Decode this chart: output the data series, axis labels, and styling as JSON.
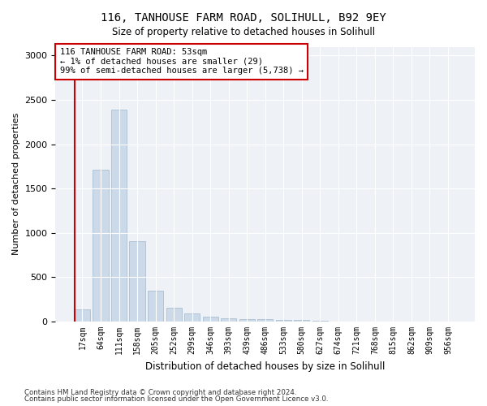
{
  "title": "116, TANHOUSE FARM ROAD, SOLIHULL, B92 9EY",
  "subtitle": "Size of property relative to detached houses in Solihull",
  "xlabel": "Distribution of detached houses by size in Solihull",
  "ylabel": "Number of detached properties",
  "bar_color": "#ccd9e8",
  "bar_edge_color": "#a0b8cc",
  "highlight_color": "#cc0000",
  "categories": [
    "17sqm",
    "64sqm",
    "111sqm",
    "158sqm",
    "205sqm",
    "252sqm",
    "299sqm",
    "346sqm",
    "393sqm",
    "439sqm",
    "486sqm",
    "533sqm",
    "580sqm",
    "627sqm",
    "674sqm",
    "721sqm",
    "768sqm",
    "815sqm",
    "862sqm",
    "909sqm",
    "956sqm"
  ],
  "values": [
    140,
    1710,
    2390,
    910,
    350,
    155,
    90,
    55,
    40,
    30,
    25,
    20,
    15,
    10,
    5,
    5,
    5,
    5,
    5,
    5,
    5
  ],
  "annotation_text": "116 TANHOUSE FARM ROAD: 53sqm\n← 1% of detached houses are smaller (29)\n99% of semi-detached houses are larger (5,738) →",
  "annotation_box_color": "#ffffff",
  "annotation_box_edge": "#cc0000",
  "ylim": [
    0,
    3100
  ],
  "yticks": [
    0,
    500,
    1000,
    1500,
    2000,
    2500,
    3000
  ],
  "footer_line1": "Contains HM Land Registry data © Crown copyright and database right 2024.",
  "footer_line2": "Contains public sector information licensed under the Open Government Licence v3.0.",
  "background_color": "#eef2f7"
}
